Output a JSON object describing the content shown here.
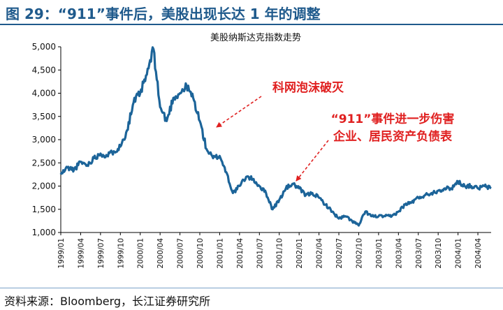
{
  "figure": {
    "label": "图 29：",
    "title": "“911”事件后，美股出现长达 1 年的调整",
    "source": "资料来源：Bloomberg，长江证券研究所"
  },
  "colors": {
    "line": "#1c6499",
    "annotation": "#e02020",
    "header": "#1f5a8c"
  },
  "chart_data": {
    "type": "line",
    "title": "美股纳斯达克指数走势",
    "xlabel": "",
    "ylabel": "",
    "ylim": [
      1000,
      5000
    ],
    "yticks": [
      "1,000",
      "1,500",
      "2,000",
      "2,500",
      "3,000",
      "3,500",
      "4,000",
      "4,500",
      "5,000"
    ],
    "xticks": [
      "1999/01",
      "1999/04",
      "1999/07",
      "1999/10",
      "2000/01",
      "2000/04",
      "2000/07",
      "2000/10",
      "2001/01",
      "2001/04",
      "2001/07",
      "2001/10",
      "2002/01",
      "2002/04",
      "2002/07",
      "2002/10",
      "2003/01",
      "2003/04",
      "2003/07",
      "2003/10",
      "2004/01",
      "2004/04"
    ],
    "grid": false,
    "legend": "none",
    "series": [
      {
        "x": [
          "1999/01",
          "1999/02",
          "1999/03",
          "1999/04",
          "1999/05",
          "1999/06",
          "1999/07",
          "1999/08",
          "1999/09",
          "1999/10",
          "1999/11",
          "1999/12",
          "2000/01",
          "2000/02",
          "2000/03",
          "2000/04",
          "2000/05",
          "2000/06",
          "2000/07",
          "2000/08",
          "2000/09",
          "2000/10",
          "2000/11",
          "2000/12",
          "2001/01",
          "2001/02",
          "2001/03",
          "2001/04",
          "2001/05",
          "2001/06",
          "2001/07",
          "2001/08",
          "2001/09",
          "2001/10",
          "2001/11",
          "2001/12",
          "2002/01",
          "2002/02",
          "2002/03",
          "2002/04",
          "2002/05",
          "2002/06",
          "2002/07",
          "2002/08",
          "2002/09",
          "2002/10",
          "2002/11",
          "2002/12",
          "2003/01",
          "2003/02",
          "2003/03",
          "2003/04",
          "2003/05",
          "2003/06",
          "2003/07",
          "2003/08",
          "2003/09",
          "2003/10",
          "2003/11",
          "2003/12",
          "2004/01",
          "2004/02",
          "2004/03",
          "2004/04",
          "2004/05",
          "2004/06"
        ],
        "values": [
          2250,
          2400,
          2350,
          2520,
          2450,
          2600,
          2700,
          2650,
          2750,
          2850,
          3200,
          3800,
          4000,
          4400,
          4950,
          3700,
          3400,
          3900,
          4000,
          4150,
          3900,
          3400,
          2800,
          2600,
          2650,
          2300,
          1850,
          2000,
          2200,
          2150,
          2000,
          1850,
          1500,
          1700,
          1950,
          2050,
          1950,
          1800,
          1850,
          1750,
          1600,
          1450,
          1300,
          1350,
          1250,
          1150,
          1450,
          1350,
          1350,
          1350,
          1350,
          1450,
          1600,
          1650,
          1750,
          1800,
          1850,
          1900,
          1950,
          1950,
          2100,
          2000,
          2000,
          1950,
          2000,
          1950
        ]
      }
    ],
    "annotations": [
      {
        "lines": [
          "科网泡沫破灭"
        ],
        "date": "2001/01",
        "value": 3250
      },
      {
        "lines": [
          "“911”事件进一步伤害",
          "企业、居民资产负债表"
        ],
        "date": "2002/01",
        "value": 2080
      }
    ]
  }
}
